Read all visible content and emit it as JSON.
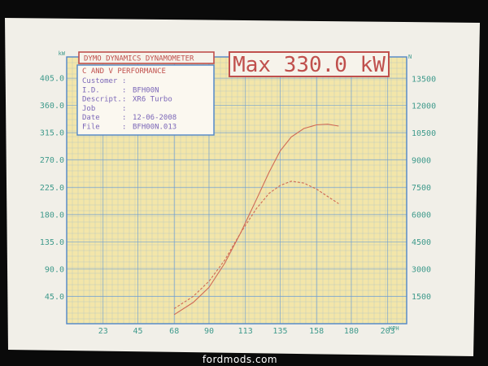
{
  "chart_data": {
    "type": "line",
    "title": "DYMO DYNAMICS DYNAMOMETER",
    "max_label": "Max 330.0 kW",
    "x_unit": "KPH",
    "x_ticks": [
      "23",
      "45",
      "68",
      "90",
      "113",
      "135",
      "158",
      "180",
      "203"
    ],
    "x_tick_values": [
      23,
      45,
      68,
      90,
      113,
      135,
      158,
      180,
      203
    ],
    "xlim": [
      0,
      215
    ],
    "y_left_unit": "kW",
    "y_left_ticks": [
      "45.0",
      "90.0",
      "135.0",
      "180.0",
      "225.0",
      "270.0",
      "315.0",
      "360.0",
      "405.0"
    ],
    "y_left_values": [
      45,
      90,
      135,
      180,
      225,
      270,
      315,
      360,
      405
    ],
    "ylim_left": [
      0,
      440
    ],
    "y_right_unit": "N",
    "y_right_ticks": [
      "1500",
      "3000",
      "4500",
      "6000",
      "7500",
      "9000",
      "10500",
      "12000",
      "13500"
    ],
    "y_right_values": [
      1500,
      3000,
      4500,
      6000,
      7500,
      9000,
      10500,
      12000,
      13500
    ],
    "ylim_right": [
      0,
      14700
    ],
    "info": {
      "company": "C AND V PERFORMANCE",
      "rows": [
        {
          "label": "Customer",
          "value": ""
        },
        {
          "label": "I.D.",
          "value": "BFH00N"
        },
        {
          "label": "Descript.",
          "value": "XR6 Turbo"
        },
        {
          "label": "Job",
          "value": ""
        },
        {
          "label": "Date",
          "value": "12-06-2008"
        },
        {
          "label": "File",
          "value": "BFH00N.013"
        }
      ]
    },
    "series": [
      {
        "axis": "left",
        "color": "#d06a55",
        "points": [
          [
            68,
            15
          ],
          [
            80,
            35
          ],
          [
            90,
            60
          ],
          [
            100,
            100
          ],
          [
            110,
            150
          ],
          [
            120,
            205
          ],
          [
            128,
            250
          ],
          [
            135,
            285
          ],
          [
            142,
            308
          ],
          [
            150,
            322
          ],
          [
            158,
            328
          ],
          [
            165,
            329
          ],
          [
            172,
            326
          ]
        ]
      },
      {
        "axis": "left",
        "color": "#d06a55",
        "dashed": true,
        "points": [
          [
            68,
            25
          ],
          [
            80,
            45
          ],
          [
            90,
            70
          ],
          [
            100,
            105
          ],
          [
            110,
            150
          ],
          [
            120,
            190
          ],
          [
            128,
            215
          ],
          [
            135,
            228
          ],
          [
            142,
            235
          ],
          [
            150,
            232
          ],
          [
            158,
            222
          ],
          [
            165,
            210
          ],
          [
            172,
            198
          ]
        ]
      }
    ]
  },
  "watermark": "fordmods.com"
}
